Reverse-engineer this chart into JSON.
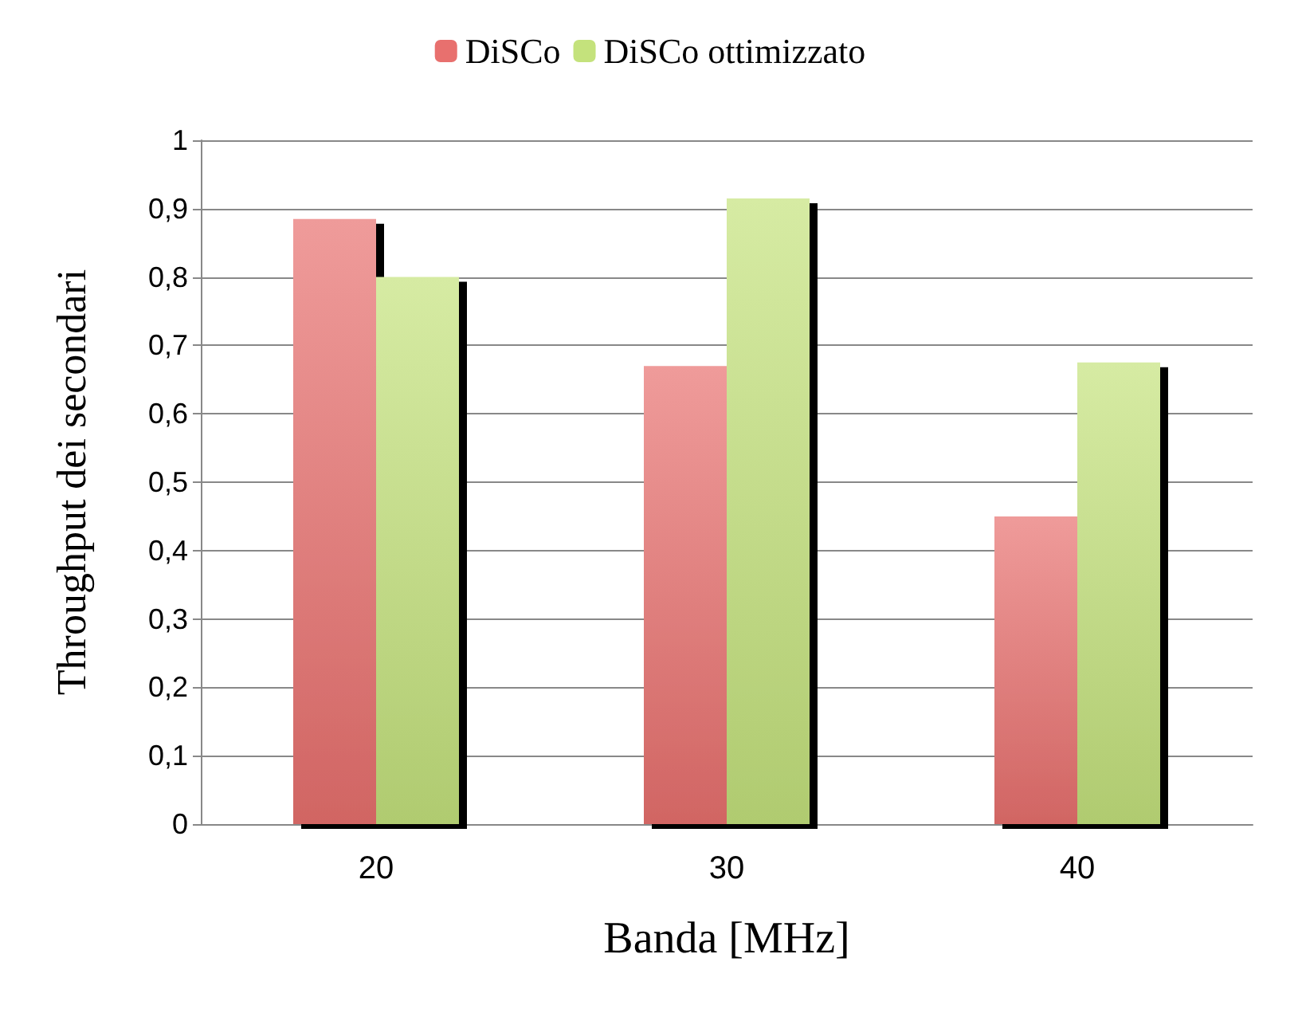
{
  "chart_data": {
    "type": "bar",
    "xlabel": "Banda [MHz]",
    "ylabel": "Throughput dei secondari",
    "categories": [
      "20",
      "30",
      "40"
    ],
    "series": [
      {
        "name": "DiSCo",
        "color": "#e8706e",
        "values": [
          0.885,
          0.67,
          0.45
        ]
      },
      {
        "name": "DiSCo ottimizzato",
        "color": "#c4e27c",
        "values": [
          0.8,
          0.915,
          0.675
        ]
      }
    ],
    "ylim": [
      0,
      1
    ],
    "yticks": [
      0,
      {
        "value": 0.1,
        "label": "0,1"
      },
      {
        "value": 0.2,
        "label": "0,2"
      },
      {
        "value": 0.3,
        "label": "0,3"
      },
      {
        "value": 0.4,
        "label": "0,4"
      },
      {
        "value": 0.5,
        "label": "0,5"
      },
      {
        "value": 0.6,
        "label": "0,6"
      },
      {
        "value": 0.7,
        "label": "0,7"
      },
      {
        "value": 0.8,
        "label": "0,8"
      },
      {
        "value": 0.9,
        "label": "0,9"
      },
      1
    ],
    "grid": "y",
    "legend": "top"
  }
}
